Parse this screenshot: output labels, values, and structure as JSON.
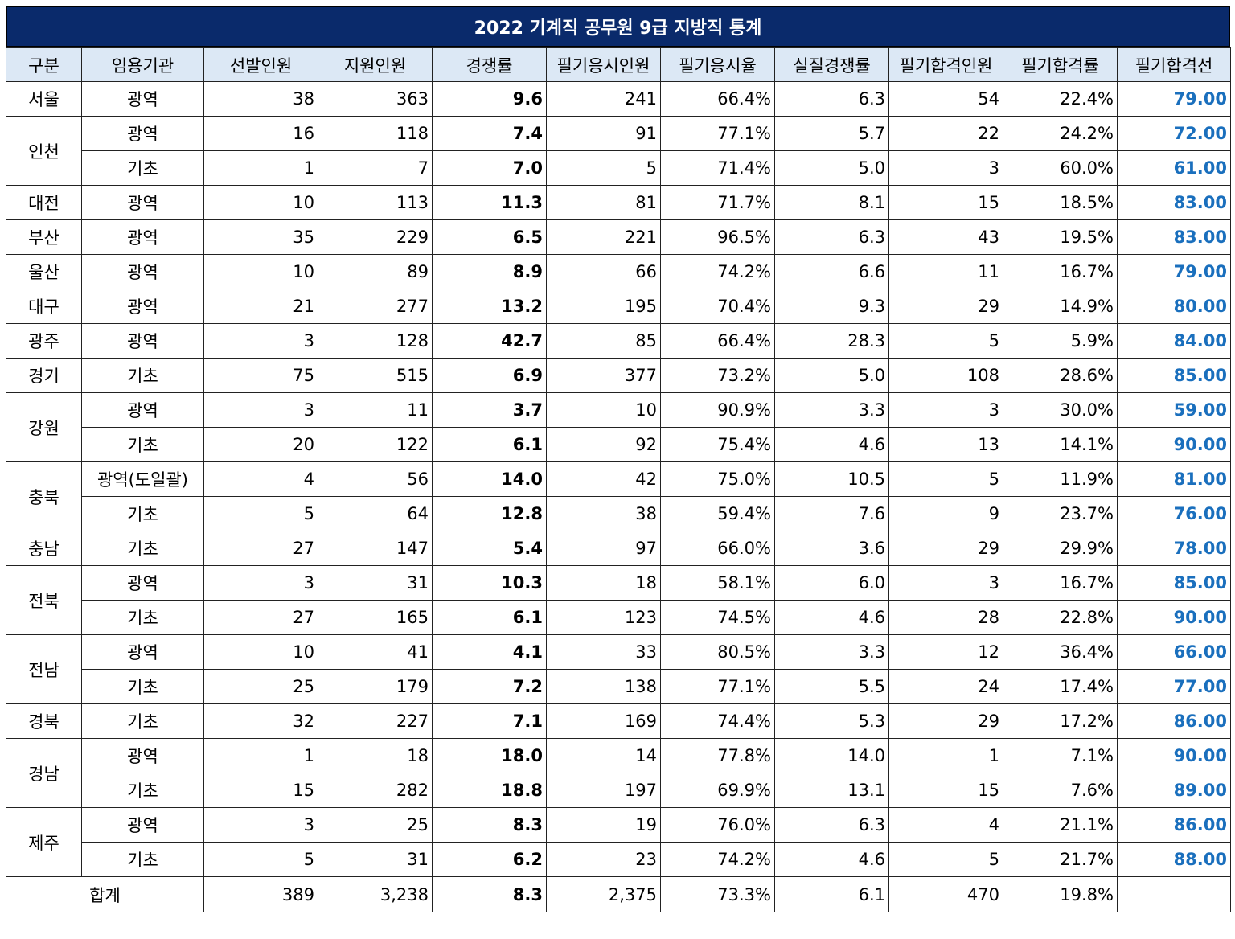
{
  "title": "2022 기계직 공무원 9급 지방직 통계",
  "headers": [
    "구분",
    "임용기관",
    "선발인원",
    "지원인원",
    "경쟁률",
    "필기응시인원",
    "필기응시율",
    "실질경쟁률",
    "필기합격인원",
    "필기합격률",
    "필기합격선"
  ],
  "groups": [
    {
      "region": "서울",
      "rows": [
        [
          "광역",
          "38",
          "363",
          "9.6",
          "241",
          "66.4%",
          "6.3",
          "54",
          "22.4%",
          "79.00"
        ]
      ]
    },
    {
      "region": "인천",
      "rows": [
        [
          "광역",
          "16",
          "118",
          "7.4",
          "91",
          "77.1%",
          "5.7",
          "22",
          "24.2%",
          "72.00"
        ],
        [
          "기초",
          "1",
          "7",
          "7.0",
          "5",
          "71.4%",
          "5.0",
          "3",
          "60.0%",
          "61.00"
        ]
      ]
    },
    {
      "region": "대전",
      "rows": [
        [
          "광역",
          "10",
          "113",
          "11.3",
          "81",
          "71.7%",
          "8.1",
          "15",
          "18.5%",
          "83.00"
        ]
      ]
    },
    {
      "region": "부산",
      "rows": [
        [
          "광역",
          "35",
          "229",
          "6.5",
          "221",
          "96.5%",
          "6.3",
          "43",
          "19.5%",
          "83.00"
        ]
      ]
    },
    {
      "region": "울산",
      "rows": [
        [
          "광역",
          "10",
          "89",
          "8.9",
          "66",
          "74.2%",
          "6.6",
          "11",
          "16.7%",
          "79.00"
        ]
      ]
    },
    {
      "region": "대구",
      "rows": [
        [
          "광역",
          "21",
          "277",
          "13.2",
          "195",
          "70.4%",
          "9.3",
          "29",
          "14.9%",
          "80.00"
        ]
      ]
    },
    {
      "region": "광주",
      "rows": [
        [
          "광역",
          "3",
          "128",
          "42.7",
          "85",
          "66.4%",
          "28.3",
          "5",
          "5.9%",
          "84.00"
        ]
      ]
    },
    {
      "region": "경기",
      "rows": [
        [
          "기초",
          "75",
          "515",
          "6.9",
          "377",
          "73.2%",
          "5.0",
          "108",
          "28.6%",
          "85.00"
        ]
      ]
    },
    {
      "region": "강원",
      "rows": [
        [
          "광역",
          "3",
          "11",
          "3.7",
          "10",
          "90.9%",
          "3.3",
          "3",
          "30.0%",
          "59.00"
        ],
        [
          "기초",
          "20",
          "122",
          "6.1",
          "92",
          "75.4%",
          "4.6",
          "13",
          "14.1%",
          "90.00"
        ]
      ]
    },
    {
      "region": "충북",
      "rows": [
        [
          "광역(도일괄)",
          "4",
          "56",
          "14.0",
          "42",
          "75.0%",
          "10.5",
          "5",
          "11.9%",
          "81.00"
        ],
        [
          "기초",
          "5",
          "64",
          "12.8",
          "38",
          "59.4%",
          "7.6",
          "9",
          "23.7%",
          "76.00"
        ]
      ]
    },
    {
      "region": "충남",
      "rows": [
        [
          "기초",
          "27",
          "147",
          "5.4",
          "97",
          "66.0%",
          "3.6",
          "29",
          "29.9%",
          "78.00"
        ]
      ]
    },
    {
      "region": "전북",
      "rows": [
        [
          "광역",
          "3",
          "31",
          "10.3",
          "18",
          "58.1%",
          "6.0",
          "3",
          "16.7%",
          "85.00"
        ],
        [
          "기초",
          "27",
          "165",
          "6.1",
          "123",
          "74.5%",
          "4.6",
          "28",
          "22.8%",
          "90.00"
        ]
      ]
    },
    {
      "region": "전남",
      "rows": [
        [
          "광역",
          "10",
          "41",
          "4.1",
          "33",
          "80.5%",
          "3.3",
          "12",
          "36.4%",
          "66.00"
        ],
        [
          "기초",
          "25",
          "179",
          "7.2",
          "138",
          "77.1%",
          "5.5",
          "24",
          "17.4%",
          "77.00"
        ]
      ]
    },
    {
      "region": "경북",
      "rows": [
        [
          "기초",
          "32",
          "227",
          "7.1",
          "169",
          "74.4%",
          "5.3",
          "29",
          "17.2%",
          "86.00"
        ]
      ]
    },
    {
      "region": "경남",
      "rows": [
        [
          "광역",
          "1",
          "18",
          "18.0",
          "14",
          "77.8%",
          "14.0",
          "1",
          "7.1%",
          "90.00"
        ],
        [
          "기초",
          "15",
          "282",
          "18.8",
          "197",
          "69.9%",
          "13.1",
          "15",
          "7.6%",
          "89.00"
        ]
      ]
    },
    {
      "region": "제주",
      "rows": [
        [
          "광역",
          "3",
          "25",
          "8.3",
          "19",
          "76.0%",
          "6.3",
          "4",
          "21.1%",
          "86.00"
        ],
        [
          "기초",
          "5",
          "31",
          "6.2",
          "23",
          "74.2%",
          "4.6",
          "5",
          "21.7%",
          "88.00"
        ]
      ]
    }
  ],
  "total": {
    "label": "합계",
    "values": [
      "389",
      "3,238",
      "8.3",
      "2,375",
      "73.3%",
      "6.1",
      "470",
      "19.8%",
      ""
    ]
  },
  "colors": {
    "title_bg": "#0a2a6b",
    "header_bg": "#dce8f5",
    "cutoff_text": "#1a6fbd"
  }
}
